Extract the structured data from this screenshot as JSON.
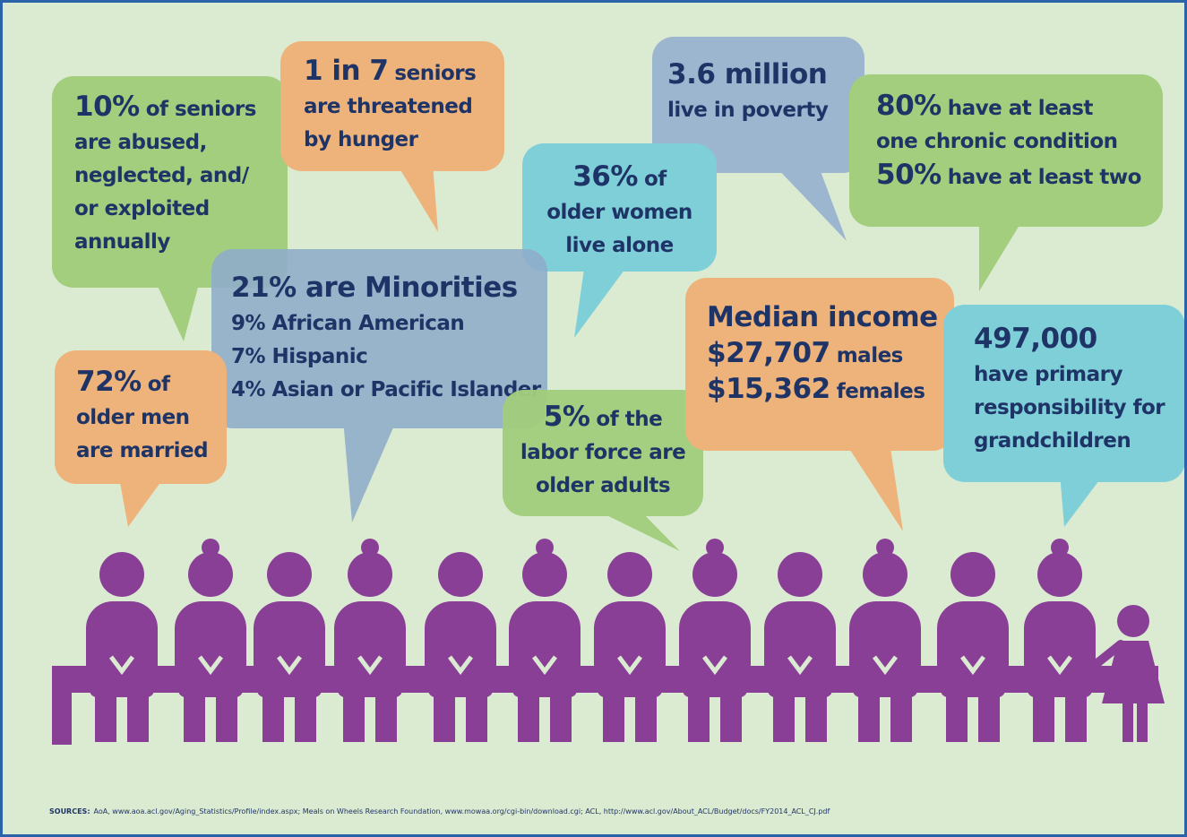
{
  "bubbles": [
    {
      "lines": [
        {
          "em": "10%",
          "rest": "of seniors"
        },
        "are abused,",
        "neglected, and/",
        "or exploited",
        "annually"
      ]
    },
    {
      "lines": [
        {
          "em": "1 in 7",
          "rest": "seniors"
        },
        "are threatened",
        "by hunger"
      ]
    },
    {
      "lines": [
        {
          "em": "3.6 million"
        },
        "live in poverty"
      ]
    },
    {
      "lines": [
        {
          "em": "80%",
          "rest": "have at least"
        },
        "one chronic condition",
        {
          "em": "50%",
          "rest": "have at least two"
        }
      ]
    },
    {
      "lines": [
        {
          "em": "36%",
          "rest": "of"
        },
        "older women",
        "live alone"
      ]
    },
    {
      "lines": [
        {
          "em": "21% are Minorities"
        },
        "9% African American",
        "7% Hispanic",
        "4% Asian or Pacific Islander"
      ]
    },
    {
      "lines": [
        {
          "em": "72%",
          "rest": "of"
        },
        "older men",
        "are married"
      ]
    },
    {
      "lines": [
        {
          "em": "5%",
          "rest": "of the"
        },
        "labor force are",
        "older adults"
      ]
    },
    {
      "lines": [
        {
          "em": "Median income"
        },
        {
          "em": "$27,707",
          "rest": "males"
        },
        {
          "em": "$15,362",
          "rest": "females"
        }
      ]
    },
    {
      "lines": [
        {
          "em": "497,000"
        },
        "have primary",
        "responsibility for",
        "grandchildren"
      ]
    }
  ],
  "footer": {
    "label": "SOURCES:",
    "text": "AoA, www.aoa.acl.gov/Aging_Statistics/Profile/index.aspx; Meals on Wheels Research Foundation, www.mowaa.org/cgi-bin/download.cgi; ACL, http://www.acl.gov/About_ACL/Budget/docs/FY2014_ACL_CJ.pdf"
  }
}
